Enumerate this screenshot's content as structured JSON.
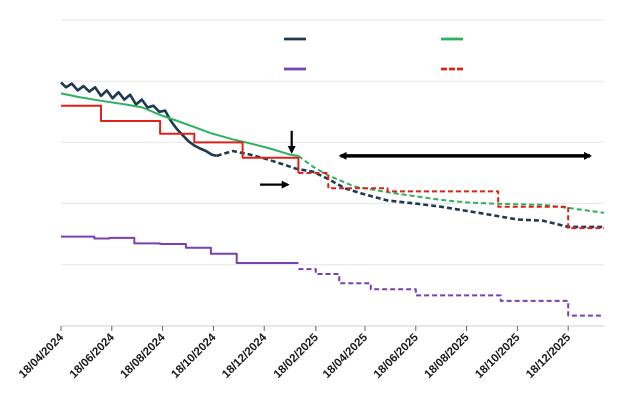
{
  "chart_data": {
    "type": "line",
    "title": "",
    "xlabel": "",
    "ylabel": "",
    "x_tick_labels": [
      "18/04/2024",
      "18/06/2024",
      "18/08/2024",
      "18/10/2024",
      "18/12/2024",
      "18/02/2025",
      "18/04/2025",
      "18/06/2025",
      "18/08/2025",
      "18/10/2025",
      "18/12/2025"
    ],
    "xlim": [
      "2024-04-18",
      "2026-01-30"
    ],
    "ylim": [
      0,
      5
    ],
    "grid": true,
    "legend": "top-center",
    "series": [
      {
        "color": "#1d3a50",
        "style": "solid",
        "width": 2.6,
        "points": [
          [
            "2024-04-18",
            3.98
          ],
          [
            "2024-04-24",
            3.9
          ],
          [
            "2024-05-01",
            3.96
          ],
          [
            "2024-05-08",
            3.85
          ],
          [
            "2024-05-15",
            3.92
          ],
          [
            "2024-05-22",
            3.83
          ],
          [
            "2024-05-29",
            3.9
          ],
          [
            "2024-06-05",
            3.76
          ],
          [
            "2024-06-12",
            3.85
          ],
          [
            "2024-06-19",
            3.72
          ],
          [
            "2024-06-26",
            3.82
          ],
          [
            "2024-07-03",
            3.7
          ],
          [
            "2024-07-10",
            3.78
          ],
          [
            "2024-07-17",
            3.62
          ],
          [
            "2024-07-24",
            3.7
          ],
          [
            "2024-07-31",
            3.57
          ],
          [
            "2024-08-07",
            3.6
          ],
          [
            "2024-08-14",
            3.5
          ],
          [
            "2024-08-21",
            3.52
          ],
          [
            "2024-08-28",
            3.35
          ],
          [
            "2024-09-04",
            3.22
          ],
          [
            "2024-09-11",
            3.12
          ],
          [
            "2024-09-18",
            3.02
          ],
          [
            "2024-09-25",
            2.95
          ],
          [
            "2024-10-02",
            2.9
          ],
          [
            "2024-10-09",
            2.86
          ],
          [
            "2024-10-16",
            2.8
          ],
          [
            "2024-10-22",
            2.78
          ]
        ]
      },
      {
        "color": "#1d3a50",
        "style": "dashed",
        "width": 2.6,
        "points": [
          [
            "2024-10-22",
            2.78
          ],
          [
            "2024-11-10",
            2.86
          ],
          [
            "2024-12-01",
            2.8
          ],
          [
            "2024-12-20",
            2.73
          ],
          [
            "2025-01-10",
            2.64
          ],
          [
            "2025-01-25",
            2.57
          ],
          [
            "2025-02-15",
            2.52
          ],
          [
            "2025-03-05",
            2.4
          ],
          [
            "2025-03-25",
            2.25
          ],
          [
            "2025-04-15",
            2.16
          ],
          [
            "2025-05-15",
            2.05
          ],
          [
            "2025-06-18",
            2.0
          ],
          [
            "2025-07-18",
            1.95
          ],
          [
            "2025-08-18",
            1.88
          ],
          [
            "2025-09-10",
            1.83
          ],
          [
            "2025-10-18",
            1.74
          ],
          [
            "2025-11-18",
            1.72
          ],
          [
            "2025-12-18",
            1.62
          ],
          [
            "2026-01-30",
            1.62
          ]
        ]
      },
      {
        "color": "#2eb15f",
        "style": "solid",
        "width": 2,
        "points": [
          [
            "2024-04-18",
            3.8
          ],
          [
            "2024-05-10",
            3.74
          ],
          [
            "2024-06-05",
            3.68
          ],
          [
            "2024-07-05",
            3.62
          ],
          [
            "2024-07-25",
            3.57
          ],
          [
            "2024-08-15",
            3.45
          ],
          [
            "2024-09-05",
            3.35
          ],
          [
            "2024-09-25",
            3.25
          ],
          [
            "2024-10-15",
            3.15
          ],
          [
            "2024-11-10",
            3.05
          ],
          [
            "2024-12-05",
            2.97
          ],
          [
            "2024-12-25",
            2.9
          ],
          [
            "2025-01-18",
            2.8
          ],
          [
            "2025-01-28",
            2.78
          ]
        ]
      },
      {
        "color": "#2eb15f",
        "style": "dashed",
        "width": 2,
        "points": [
          [
            "2025-01-28",
            2.78
          ],
          [
            "2025-02-15",
            2.6
          ],
          [
            "2025-03-05",
            2.46
          ],
          [
            "2025-04-05",
            2.28
          ],
          [
            "2025-05-18",
            2.18
          ],
          [
            "2025-06-18",
            2.12
          ],
          [
            "2025-07-18",
            2.06
          ],
          [
            "2025-08-18",
            2.02
          ],
          [
            "2025-09-18",
            2.0
          ],
          [
            "2025-10-18",
            1.99
          ],
          [
            "2025-11-18",
            1.98
          ],
          [
            "2025-12-18",
            1.93
          ],
          [
            "2026-01-30",
            1.85
          ]
        ]
      },
      {
        "color": "#e0201a",
        "style": "solid",
        "width": 2,
        "step": true,
        "points": [
          [
            "2024-04-18",
            3.6
          ],
          [
            "2024-06-05",
            3.35
          ],
          [
            "2024-08-15",
            3.14
          ],
          [
            "2024-09-25",
            3.0
          ],
          [
            "2024-11-22",
            2.75
          ],
          [
            "2025-01-28",
            2.5
          ]
        ]
      },
      {
        "color": "#e0201a",
        "style": "dashed",
        "width": 2,
        "step": true,
        "points": [
          [
            "2025-01-28",
            2.5
          ],
          [
            "2025-03-05",
            2.25
          ],
          [
            "2025-05-15",
            2.2
          ],
          [
            "2025-09-25",
            1.95
          ],
          [
            "2025-12-18",
            1.6
          ],
          [
            "2026-01-30",
            1.6
          ]
        ]
      },
      {
        "color": "#7a3fb0",
        "style": "solid",
        "width": 2,
        "step": true,
        "points": [
          [
            "2024-04-18",
            1.46
          ],
          [
            "2024-05-28",
            1.43
          ],
          [
            "2024-06-15",
            1.44
          ],
          [
            "2024-07-15",
            1.35
          ],
          [
            "2024-08-15",
            1.34
          ],
          [
            "2024-09-15",
            1.28
          ],
          [
            "2024-10-15",
            1.18
          ],
          [
            "2024-11-15",
            1.03
          ],
          [
            "2025-01-28",
            1.03
          ]
        ]
      },
      {
        "color": "#7a3fb0",
        "style": "dashed",
        "width": 2,
        "step": true,
        "points": [
          [
            "2025-01-28",
            0.93
          ],
          [
            "2025-02-18",
            0.85
          ],
          [
            "2025-03-18",
            0.7
          ],
          [
            "2025-04-25",
            0.6
          ],
          [
            "2025-06-18",
            0.5
          ],
          [
            "2025-08-18",
            0.5
          ],
          [
            "2025-09-28",
            0.41
          ],
          [
            "2025-11-25",
            0.41
          ],
          [
            "2025-12-18",
            0.17
          ],
          [
            "2026-01-30",
            0.17
          ]
        ]
      }
    ],
    "legend_swatches": [
      {
        "color": "#1d3a50",
        "style": "solid"
      },
      {
        "color": "#2eb15f",
        "style": "solid"
      },
      {
        "color": "#7a3fb0",
        "style": "solid"
      },
      {
        "color": "#e0201a",
        "style": "dashed"
      }
    ],
    "annotations": [
      {
        "kind": "down-arrow",
        "x": "2025-01-20",
        "from_y": 3.19,
        "to_y": 2.78,
        "color": "#000000"
      },
      {
        "kind": "right-arrow",
        "y": 2.31,
        "from_x": "2024-12-13",
        "to_x": "2025-01-20",
        "color": "#000000"
      },
      {
        "kind": "double-arrow",
        "y": 2.78,
        "from_x": "2025-03-15",
        "to_x": "2026-01-18",
        "color": "#000000"
      }
    ]
  }
}
